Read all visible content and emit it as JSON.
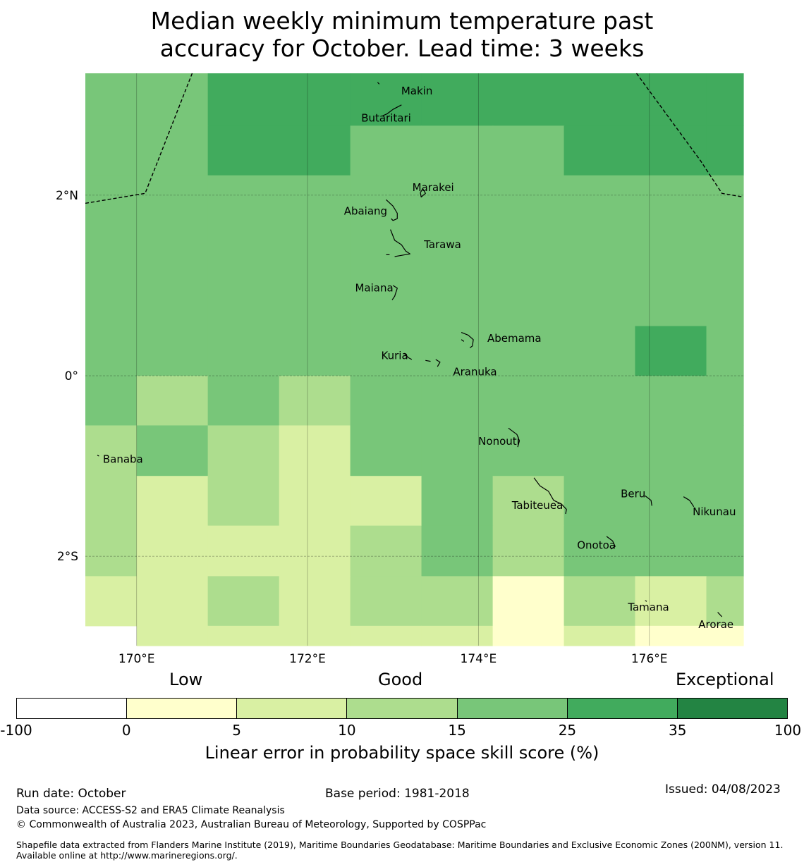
{
  "title_line1": "Median weekly minimum temperature past",
  "title_line2": "accuracy for October. Lead time: 3 weeks",
  "map": {
    "lon_range": [
      169.4,
      177.1
    ],
    "lat_range": [
      -2.99,
      3.35
    ],
    "lon_ticks": [
      {
        "value": 170,
        "label": "170°E"
      },
      {
        "value": 172,
        "label": "172°E"
      },
      {
        "value": 174,
        "label": "174°E"
      },
      {
        "value": 176,
        "label": "176°E"
      }
    ],
    "lat_ticks": [
      {
        "value": 2,
        "label": "2°N"
      },
      {
        "value": 0,
        "label": "0°"
      },
      {
        "value": -2,
        "label": "2°S"
      }
    ],
    "grid_lon_edges": [
      169.4,
      170.0,
      170.833,
      171.667,
      172.5,
      173.333,
      174.167,
      175.0,
      175.833,
      176.667,
      177.1
    ],
    "grid_lat_edges": [
      3.69,
      2.77,
      2.22,
      0.55,
      0.0,
      -0.55,
      -1.11,
      -1.66,
      -2.22,
      -2.77,
      -2.99
    ],
    "grid_levels": [
      [
        4,
        4,
        5,
        5,
        5,
        5,
        5,
        5,
        5,
        5
      ],
      [
        4,
        4,
        5,
        5,
        4,
        4,
        4,
        5,
        5,
        5
      ],
      [
        4,
        4,
        4,
        4,
        4,
        4,
        4,
        4,
        4,
        4
      ],
      [
        4,
        4,
        4,
        4,
        4,
        4,
        4,
        4,
        5,
        4
      ],
      [
        4,
        3,
        4,
        3,
        4,
        4,
        4,
        4,
        4,
        4
      ],
      [
        3,
        4,
        3,
        2,
        4,
        4,
        4,
        4,
        4,
        4
      ],
      [
        3,
        2,
        3,
        2,
        2,
        4,
        3,
        4,
        4,
        4
      ],
      [
        3,
        2,
        2,
        2,
        3,
        4,
        3,
        4,
        4,
        4
      ],
      [
        2,
        2,
        3,
        2,
        3,
        3,
        1,
        3,
        2,
        3
      ],
      [
        -1,
        2,
        2,
        2,
        2,
        2,
        1,
        2,
        1,
        1
      ]
    ],
    "eez_boundary_west": [
      [
        169.4,
        1.91
      ],
      [
        170.1,
        2.02
      ],
      [
        170.65,
        3.35
      ]
    ],
    "eez_boundary_east": [
      [
        175.85,
        3.35
      ],
      [
        176.6,
        2.38
      ],
      [
        176.85,
        2.02
      ],
      [
        177.1,
        1.98
      ]
    ],
    "islands": [
      {
        "name": "Makin",
        "lon": 173.28,
        "lat": 3.15
      },
      {
        "name": "Butaritari",
        "lon": 172.92,
        "lat": 2.85
      },
      {
        "name": "Marakei",
        "lon": 173.47,
        "lat": 2.08
      },
      {
        "name": "Abaiang",
        "lon": 172.68,
        "lat": 1.82
      },
      {
        "name": "Tarawa",
        "lon": 173.58,
        "lat": 1.45
      },
      {
        "name": "Maiana",
        "lon": 172.78,
        "lat": 0.97
      },
      {
        "name": "Abemama",
        "lon": 174.42,
        "lat": 0.41
      },
      {
        "name": "Kuria",
        "lon": 173.02,
        "lat": 0.22
      },
      {
        "name": "Aranuka",
        "lon": 173.96,
        "lat": 0.04
      },
      {
        "name": "Nonouti",
        "lon": 174.24,
        "lat": -0.73
      },
      {
        "name": "Banaba",
        "lon": 169.84,
        "lat": -0.93
      },
      {
        "name": "Beru",
        "lon": 175.81,
        "lat": -1.31
      },
      {
        "name": "Nikunau",
        "lon": 176.76,
        "lat": -1.51
      },
      {
        "name": "Tabiteuea",
        "lon": 174.69,
        "lat": -1.44
      },
      {
        "name": "Onotoa",
        "lon": 175.38,
        "lat": -1.88
      },
      {
        "name": "Tamana",
        "lon": 175.99,
        "lat": -2.57
      },
      {
        "name": "Arorae",
        "lon": 176.78,
        "lat": -2.76
      }
    ],
    "coastlines": [
      [
        [
          173.1,
          3.0
        ],
        [
          173.0,
          2.95
        ],
        [
          172.93,
          2.9
        ],
        [
          172.88,
          2.88
        ]
      ],
      [
        [
          172.82,
          3.25
        ],
        [
          172.84,
          3.23
        ]
      ],
      [
        [
          173.32,
          2.03
        ],
        [
          173.35,
          2.07
        ],
        [
          173.38,
          2.02
        ],
        [
          173.33,
          1.98
        ],
        [
          173.32,
          2.03
        ]
      ],
      [
        [
          172.92,
          1.95
        ],
        [
          173.0,
          1.88
        ],
        [
          173.05,
          1.8
        ],
        [
          173.05,
          1.74
        ],
        [
          173.0,
          1.72
        ],
        [
          172.98,
          1.74
        ]
      ],
      [
        [
          172.97,
          1.62
        ],
        [
          173.02,
          1.5
        ],
        [
          173.1,
          1.45
        ],
        [
          173.15,
          1.38
        ],
        [
          173.2,
          1.35
        ],
        [
          173.08,
          1.33
        ],
        [
          173.02,
          1.32
        ]
      ],
      [
        [
          172.92,
          1.34
        ],
        [
          172.96,
          1.34
        ]
      ],
      [
        [
          173.0,
          1.0
        ],
        [
          173.05,
          0.97
        ],
        [
          173.02,
          0.88
        ],
        [
          172.99,
          0.84
        ]
      ],
      [
        [
          173.8,
          0.48
        ],
        [
          173.88,
          0.45
        ],
        [
          173.94,
          0.4
        ],
        [
          173.93,
          0.33
        ],
        [
          173.9,
          0.31
        ]
      ],
      [
        [
          173.8,
          0.4
        ],
        [
          173.83,
          0.38
        ]
      ],
      [
        [
          173.13,
          0.25
        ],
        [
          173.18,
          0.2
        ],
        [
          173.22,
          0.18
        ]
      ],
      [
        [
          173.38,
          0.17
        ],
        [
          173.44,
          0.16
        ]
      ],
      [
        [
          173.5,
          0.18
        ],
        [
          173.55,
          0.15
        ],
        [
          173.52,
          0.1
        ]
      ],
      [
        [
          174.35,
          -0.58
        ],
        [
          174.45,
          -0.65
        ],
        [
          174.48,
          -0.72
        ],
        [
          174.46,
          -0.79
        ]
      ],
      [
        [
          169.54,
          -0.88
        ],
        [
          169.56,
          -0.89
        ]
      ],
      [
        [
          174.65,
          -1.13
        ],
        [
          174.72,
          -1.22
        ],
        [
          174.82,
          -1.28
        ],
        [
          174.88,
          -1.38
        ],
        [
          174.97,
          -1.42
        ],
        [
          175.03,
          -1.48
        ],
        [
          175.02,
          -1.53
        ]
      ],
      [
        [
          175.95,
          -1.33
        ],
        [
          176.02,
          -1.38
        ],
        [
          176.03,
          -1.44
        ]
      ],
      [
        [
          176.4,
          -1.34
        ],
        [
          176.47,
          -1.38
        ],
        [
          176.52,
          -1.45
        ]
      ],
      [
        [
          175.5,
          -1.78
        ],
        [
          175.57,
          -1.83
        ],
        [
          175.6,
          -1.89
        ],
        [
          175.55,
          -1.92
        ]
      ],
      [
        [
          175.95,
          -2.49
        ],
        [
          175.97,
          -2.5
        ]
      ],
      [
        [
          176.8,
          -2.62
        ],
        [
          176.85,
          -2.67
        ]
      ]
    ]
  },
  "colorbar": {
    "label_low": "Low",
    "label_good": "Good",
    "label_exceptional": "Exceptional",
    "ticks": [
      "-100",
      "0",
      "5",
      "10",
      "15",
      "25",
      "35",
      "100"
    ],
    "colors": [
      "#ffffff",
      "#ffffcc",
      "#d9f0a3",
      "#addd8e",
      "#78c679",
      "#41ab5d",
      "#238443"
    ],
    "axis_label": "Linear error in probability space skill score (%)"
  },
  "footer": {
    "run_date": "Run date: October",
    "base_period": "Base period: 1981-2018",
    "issued": "Issued: 04/08/2023",
    "data_source": "Data source: ACCESS-S2 and ERA5 Climate Reanalysis",
    "copyright": "© Commonwealth of Australia 2023, Australian Bureau of Meteorology, Supported by COSPPac",
    "shapefile": "Shapefile data extracted from Flanders Marine Institute (2019), Maritime Boundaries Geodatabase: Maritime Boundaries and Exclusive Economic Zones (200NM), version 11. Available online at http://www.marineregions.org/."
  }
}
